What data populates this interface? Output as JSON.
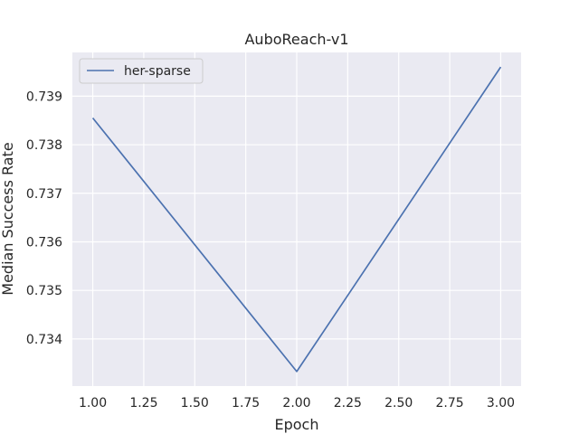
{
  "chart_data": {
    "type": "line",
    "title": "AuboReach-v1",
    "xlabel": "Epoch",
    "ylabel": "Median Success Rate",
    "xlim": [
      0.9,
      3.1
    ],
    "ylim": [
      0.73303,
      0.7399
    ],
    "xticks": [
      1.0,
      1.25,
      1.5,
      1.75,
      2.0,
      2.25,
      2.5,
      2.75,
      3.0
    ],
    "xtick_labels": [
      "1.00",
      "1.25",
      "1.50",
      "1.75",
      "2.00",
      "2.25",
      "2.50",
      "2.75",
      "3.00"
    ],
    "yticks": [
      0.734,
      0.735,
      0.736,
      0.737,
      0.738,
      0.739
    ],
    "ytick_labels": [
      "0.734",
      "0.735",
      "0.736",
      "0.737",
      "0.738",
      "0.739"
    ],
    "grid": true,
    "legend_position": "top-left",
    "series": [
      {
        "name": "her-sparse",
        "color": "#4c72b0",
        "x": [
          1.0,
          2.0,
          3.0
        ],
        "y": [
          0.73855,
          0.73333,
          0.7396
        ]
      }
    ],
    "colors": {
      "plot_background": "#eaeaf2",
      "grid": "#ffffff"
    }
  }
}
